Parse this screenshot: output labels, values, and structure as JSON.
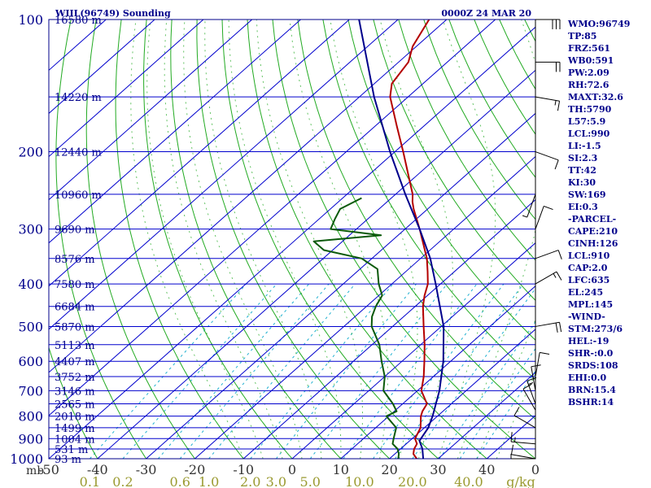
{
  "header": {
    "station_title": "WIIL(96749) Sounding",
    "time_label": "0000Z 24 MAR 20"
  },
  "colors": {
    "frame": "#00008b",
    "isobar": "#0000cd",
    "isotherm": "#0000cd",
    "dry_adiabat": "#22aa22",
    "moist_adiabat": "#22aa22",
    "mixing_ratio": "#1fb0d0",
    "temperature": "#b40000",
    "dewpoint": "#0b5a0b",
    "parcel": "#00008b",
    "text": "#00008b",
    "axis_bottom_temp": "#333333",
    "axis_bottom_mixing": "#9a9a30"
  },
  "chart_data": {
    "type": "line",
    "title": "WIIL(96749) Sounding",
    "time": "0000Z 24 MAR 20",
    "y_axis_unit_label": "mb",
    "x_axis_unit_label": "g/kg",
    "pressure_levels": [
      100,
      200,
      300,
      400,
      500,
      600,
      700,
      800,
      900,
      1000
    ],
    "pressure_labels": [
      "100",
      "200",
      "300",
      "400",
      "500",
      "600",
      "700",
      "800",
      "900",
      "1000"
    ],
    "height_labels": [
      {
        "p": 100,
        "text": "16580 m"
      },
      {
        "p": 150,
        "text": "14220 m"
      },
      {
        "p": 200,
        "text": "12440 m"
      },
      {
        "p": 250,
        "text": "10960 m"
      },
      {
        "p": 300,
        "text": "9690 m"
      },
      {
        "p": 350,
        "text": "8576 m"
      },
      {
        "p": 400,
        "text": "7580 m"
      },
      {
        "p": 450,
        "text": "6684 m"
      },
      {
        "p": 500,
        "text": "5870 m"
      },
      {
        "p": 550,
        "text": "5113 m"
      },
      {
        "p": 600,
        "text": "4407 m"
      },
      {
        "p": 650,
        "text": "3752 m"
      },
      {
        "p": 700,
        "text": "3146 m"
      },
      {
        "p": 750,
        "text": "2565 m"
      },
      {
        "p": 800,
        "text": "2018 m"
      },
      {
        "p": 850,
        "text": "1499 m"
      },
      {
        "p": 900,
        "text": "1004 m"
      },
      {
        "p": 950,
        "text": "531 m"
      },
      {
        "p": 1000,
        "text": "93 m"
      }
    ],
    "temperature_ticks": [
      -50,
      -40,
      -30,
      -20,
      -10,
      0,
      10,
      20,
      30,
      40
    ],
    "temperature_tick_labels": [
      "-50",
      "-40",
      "-30",
      "-20",
      "-10",
      "0",
      "10",
      "20",
      "30",
      "40"
    ],
    "mixing_ratio_labels": [
      {
        "w": 0.1,
        "text": "0.1"
      },
      {
        "w": 0.2,
        "text": "0.2"
      },
      {
        "w": 0.6,
        "text": "0.6"
      },
      {
        "w": 1.0,
        "text": "1.0"
      },
      {
        "w": 2.0,
        "text": "2.0"
      },
      {
        "w": 3.0,
        "text": "3.0"
      },
      {
        "w": 5.0,
        "text": "5.0"
      },
      {
        "w": 10.0,
        "text": "10.0"
      },
      {
        "w": 20.0,
        "text": "20.0"
      },
      {
        "w": 40.0,
        "text": "40.0"
      }
    ],
    "xlim_surface_temp_c": [
      -50,
      50
    ],
    "ylim_pressure_mb": [
      1000,
      100
    ],
    "log_pressure_axis": true,
    "skew": true,
    "grid": true,
    "series": [
      {
        "key": "temperature",
        "points": [
          {
            "p": 1012,
            "t": 27.5
          },
          {
            "p": 1000,
            "t": 25.6
          },
          {
            "p": 975,
            "t": 23.8
          },
          {
            "p": 950,
            "t": 22.8
          },
          {
            "p": 925,
            "t": 22.2
          },
          {
            "p": 900,
            "t": 20.6
          },
          {
            "p": 850,
            "t": 19.2
          },
          {
            "p": 800,
            "t": 16.6
          },
          {
            "p": 780,
            "t": 15.8
          },
          {
            "p": 750,
            "t": 15.0
          },
          {
            "p": 700,
            "t": 10.8
          },
          {
            "p": 650,
            "t": 8.0
          },
          {
            "p": 600,
            "t": 4.6
          },
          {
            "p": 550,
            "t": 0.8
          },
          {
            "p": 500,
            "t": -3.6
          },
          {
            "p": 450,
            "t": -8.4
          },
          {
            "p": 425,
            "t": -10.6
          },
          {
            "p": 400,
            "t": -12.6
          },
          {
            "p": 375,
            "t": -15.5
          },
          {
            "p": 350,
            "t": -18.7
          },
          {
            "p": 300,
            "t": -27.0
          },
          {
            "p": 270,
            "t": -32.9
          },
          {
            "p": 260,
            "t": -34.8
          },
          {
            "p": 250,
            "t": -36.5
          },
          {
            "p": 200,
            "t": -48.3
          },
          {
            "p": 175,
            "t": -55.5
          },
          {
            "p": 150,
            "t": -63.7
          },
          {
            "p": 140,
            "t": -66.4
          },
          {
            "p": 125,
            "t": -68.0
          },
          {
            "p": 115,
            "t": -70.8
          },
          {
            "p": 100,
            "t": -73.6
          }
        ]
      },
      {
        "key": "dewpoint",
        "points": [
          {
            "p": 1012,
            "t": 21.0
          },
          {
            "p": 1000,
            "t": 21.8
          },
          {
            "p": 975,
            "t": 20.8
          },
          {
            "p": 950,
            "t": 19.4
          },
          {
            "p": 925,
            "t": 17.2
          },
          {
            "p": 900,
            "t": 16.2
          },
          {
            "p": 850,
            "t": 14.2
          },
          {
            "p": 800,
            "t": 9.5
          },
          {
            "p": 780,
            "t": 10.5
          },
          {
            "p": 750,
            "t": 8.0
          },
          {
            "p": 700,
            "t": 3.0
          },
          {
            "p": 650,
            "t": 0.0
          },
          {
            "p": 600,
            "t": -4.2
          },
          {
            "p": 550,
            "t": -8.5
          },
          {
            "p": 500,
            "t": -14.3
          },
          {
            "p": 475,
            "t": -16.5
          },
          {
            "p": 450,
            "t": -18.1
          },
          {
            "p": 425,
            "t": -19.3
          },
          {
            "p": 400,
            "t": -22.7
          },
          {
            "p": 370,
            "t": -26.4
          },
          {
            "p": 350,
            "t": -32.1
          },
          {
            "p": 335,
            "t": -41.8
          },
          {
            "p": 320,
            "t": -45.9
          },
          {
            "p": 310,
            "t": -33.5
          },
          {
            "p": 300,
            "t": -45.3
          },
          {
            "p": 285,
            "t": -46.7
          },
          {
            "p": 270,
            "t": -48.0
          },
          {
            "p": 255,
            "t": -46.1
          }
        ]
      },
      {
        "key": "parcel",
        "points": [
          {
            "p": 1012,
            "t": 27.5
          },
          {
            "p": 950,
            "t": 24.5
          },
          {
            "p": 910,
            "t": 22.0
          },
          {
            "p": 850,
            "t": 20.8
          },
          {
            "p": 800,
            "t": 19.0
          },
          {
            "p": 700,
            "t": 14.5
          },
          {
            "p": 600,
            "t": 8.5
          },
          {
            "p": 500,
            "t": 0.5
          },
          {
            "p": 400,
            "t": -11.0
          },
          {
            "p": 350,
            "t": -18.0
          },
          {
            "p": 300,
            "t": -27.0
          },
          {
            "p": 250,
            "t": -38.0
          },
          {
            "p": 200,
            "t": -51.0
          },
          {
            "p": 150,
            "t": -67.0
          },
          {
            "p": 100,
            "t": -88.0
          }
        ]
      }
    ],
    "wind_barbs": [
      {
        "p": 1012,
        "dir": 270,
        "kt": 5
      },
      {
        "p": 1000,
        "dir": 280,
        "kt": 10
      },
      {
        "p": 925,
        "dir": 275,
        "kt": 15
      },
      {
        "p": 850,
        "dir": 300,
        "kt": 10
      },
      {
        "p": 775,
        "dir": 330,
        "kt": 10
      },
      {
        "p": 750,
        "dir": 340,
        "kt": 15
      },
      {
        "p": 700,
        "dir": 350,
        "kt": 10
      },
      {
        "p": 650,
        "dir": 10,
        "kt": 10
      },
      {
        "p": 500,
        "dir": 80,
        "kt": 20
      },
      {
        "p": 400,
        "dir": 60,
        "kt": 15
      },
      {
        "p": 350,
        "dir": 70,
        "kt": 10
      },
      {
        "p": 300,
        "dir": 20,
        "kt": 10
      },
      {
        "p": 250,
        "dir": 200,
        "kt": 5
      },
      {
        "p": 200,
        "dir": 110,
        "kt": 10
      },
      {
        "p": 150,
        "dir": 100,
        "kt": 15
      },
      {
        "p": 125,
        "dir": 90,
        "kt": 20
      },
      {
        "p": 100,
        "dir": 90,
        "kt": 30
      }
    ]
  },
  "indices": [
    "WMO:96749",
    "TP:85",
    "FRZ:561",
    "WB0:591",
    "PW:2.09",
    "RH:72.6",
    "MAXT:32.6",
    "TH:5790",
    "L57:5.9",
    "LCL:990",
    "LI:-1.5",
    "SI:2.3",
    "TT:42",
    "KI:30",
    "SW:169",
    "EI:0.3",
    "-PARCEL-",
    "CAPE:210",
    "CINH:126",
    "LCL:910",
    "CAP:2.0",
    "LFC:635",
    "EL:245",
    "MPL:145",
    "-WIND-",
    "STM:273/6",
    "HEL:-19",
    "SHR-:0.0",
    "SRDS:108",
    "EHI:0.0",
    "BRN:15.4",
    "BSHR:14"
  ]
}
